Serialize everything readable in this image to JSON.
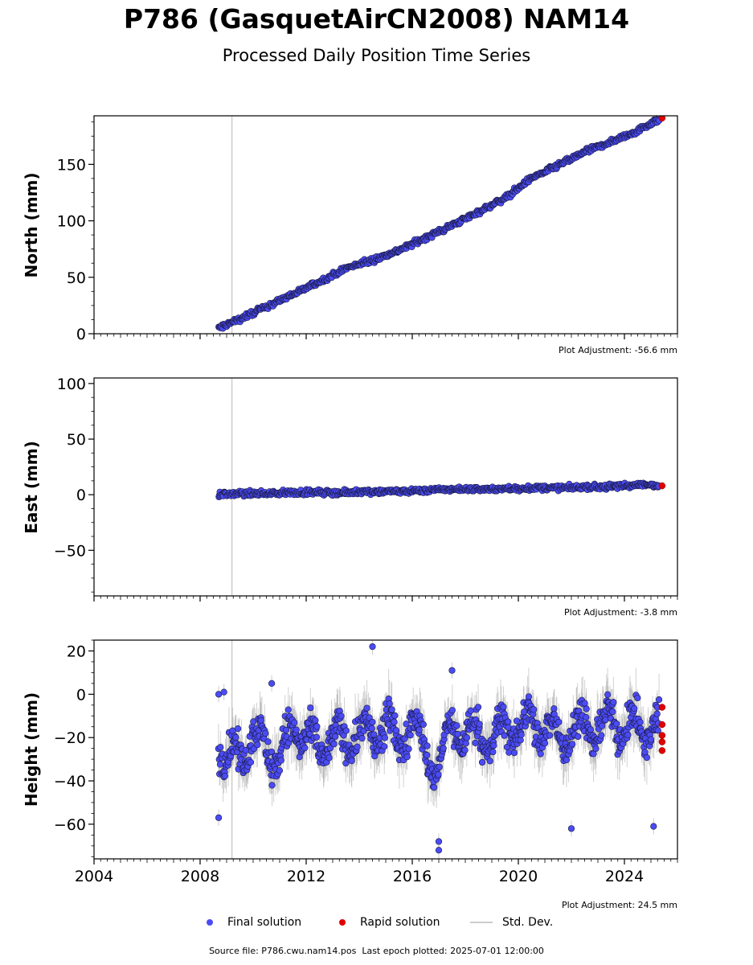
{
  "title": "P786 (GasquetAirCN2008) NAM14",
  "subtitle": "Processed Daily Position Time Series",
  "legend": {
    "final": "Final solution",
    "rapid": "Rapid solution",
    "std": "Std. Dev."
  },
  "footer": {
    "source": "Source file: P786.cwu.nam14.pos",
    "last_epoch": "Last epoch plotted: 2025-07-01 12:00:00"
  },
  "colors": {
    "final": "#4b4bf5",
    "rapid": "#e00000",
    "stddev": "#cccccc",
    "marker_edge": "#1a1a40"
  },
  "chart_data": [
    {
      "type": "scatter",
      "ylabel": "North (mm)",
      "xlim": [
        2004,
        2026
      ],
      "ylim": [
        0,
        193
      ],
      "yticks": [
        0,
        50,
        100,
        150
      ],
      "adjustment": "Plot Adjustment: -56.6 mm",
      "events": [
        2009.2
      ],
      "final_series": {
        "x": [
          2008.7,
          2009.5,
          2010.5,
          2011.5,
          2012.5,
          2013.5,
          2014.5,
          2015.5,
          2016.5,
          2017.5,
          2018.5,
          2019.5,
          2020.5,
          2021.5,
          2022.5,
          2023.5,
          2024.5,
          2025.3
        ],
        "y": [
          5,
          13,
          24,
          35,
          46,
          58,
          65,
          74,
          85,
          96,
          108,
          120,
          138,
          149,
          161,
          170,
          180,
          190
        ]
      },
      "rapid_series": {
        "x": [
          2025.42
        ],
        "y": [
          191
        ]
      }
    },
    {
      "type": "scatter",
      "ylabel": "East (mm)",
      "xlim": [
        2004,
        2026
      ],
      "ylim": [
        -91,
        105
      ],
      "yticks": [
        -50,
        0,
        50,
        100
      ],
      "adjustment": "Plot Adjustment: -3.8 mm",
      "events": [
        2009.2
      ],
      "final_series": {
        "x": [
          2008.7,
          2009.5,
          2010.5,
          2011.5,
          2012.5,
          2013.5,
          2014.5,
          2015.5,
          2016.5,
          2017.5,
          2018.5,
          2019.5,
          2020.5,
          2021.5,
          2022.5,
          2023.5,
          2024.5,
          2025.3
        ],
        "y": [
          0,
          1,
          1,
          2,
          2,
          2,
          3,
          3,
          4,
          5,
          5,
          5,
          6,
          6,
          7,
          7,
          9,
          8
        ]
      },
      "rapid_series": {
        "x": [
          2025.42
        ],
        "y": [
          8
        ]
      }
    },
    {
      "type": "scatter",
      "ylabel": "Height (mm)",
      "xlim": [
        2004,
        2026
      ],
      "ylim": [
        -76,
        25
      ],
      "yticks": [
        -60,
        -40,
        -20,
        0,
        20
      ],
      "xticks": [
        2004,
        2008,
        2012,
        2016,
        2020,
        2024
      ],
      "adjustment": "Plot Adjustment: 24.5 mm",
      "events": [
        2009.2
      ],
      "final_series": {
        "x": [
          2008.7,
          2009.0,
          2009.5,
          2010.0,
          2010.5,
          2011.0,
          2011.5,
          2012.0,
          2012.5,
          2013.0,
          2013.5,
          2014.0,
          2014.5,
          2015.0,
          2015.5,
          2016.0,
          2016.5,
          2017.0,
          2017.5,
          2018.0,
          2018.5,
          2019.0,
          2019.5,
          2020.0,
          2020.5,
          2021.0,
          2021.5,
          2022.0,
          2022.5,
          2023.0,
          2023.5,
          2024.0,
          2024.5,
          2025.0,
          2025.3
        ],
        "y": [
          -22,
          -30,
          -28,
          -18,
          -25,
          -30,
          -15,
          -20,
          -27,
          -18,
          -23,
          -15,
          -22,
          -12,
          -25,
          -10,
          -28,
          -35,
          -12,
          -22,
          -15,
          -25,
          -12,
          -20,
          -8,
          -20,
          -15,
          -22,
          -10,
          -20,
          -8,
          -18,
          -12,
          -20,
          -15
        ]
      },
      "outliers": {
        "x": [
          2008.7,
          2008.9,
          2010.7,
          2014.5,
          2017.0,
          2017.0,
          2017.5,
          2022.0,
          2025.1,
          2008.7
        ],
        "y": [
          0,
          1,
          5,
          22,
          -68,
          -72,
          11,
          -62,
          -61,
          -57
        ]
      },
      "rapid_series": {
        "x": [
          2025.42,
          2025.42,
          2025.42,
          2025.42,
          2025.42
        ],
        "y": [
          -6,
          -14,
          -19,
          -22,
          -26
        ]
      }
    }
  ]
}
